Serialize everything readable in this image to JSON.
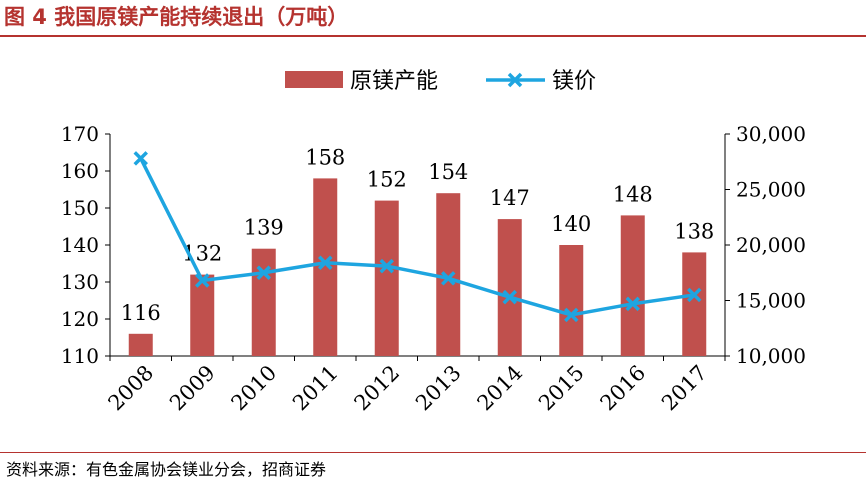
{
  "figure": {
    "title": "图 4  我国原镁产能持续退出（万吨）",
    "source": "资料来源：有色金属协会镁业分会，招商证券"
  },
  "colors": {
    "accent": "#b5332f",
    "bar": "#c0504d",
    "line": "#1ea5e0",
    "axis": "#000000"
  },
  "chart_data": {
    "type": "bar+line",
    "title": "我国原镁产能持续退出（万吨）",
    "categories": [
      "2008",
      "2009",
      "2010",
      "2011",
      "2012",
      "2013",
      "2014",
      "2015",
      "2016",
      "2017"
    ],
    "series": [
      {
        "name": "原镁产能",
        "type": "bar",
        "axis": "left",
        "values": [
          116,
          132,
          139,
          158,
          152,
          154,
          147,
          140,
          148,
          138
        ],
        "labels": [
          "116",
          "132",
          "139",
          "158",
          "152",
          "154",
          "147",
          "140",
          "148",
          "138"
        ]
      },
      {
        "name": "镁价",
        "type": "line",
        "marker": "x",
        "axis": "right",
        "values": [
          27800,
          16800,
          17500,
          18400,
          18100,
          17000,
          15300,
          13700,
          14700,
          15500
        ]
      }
    ],
    "y_left": {
      "min": 110,
      "max": 170,
      "ticks": [
        "110",
        "120",
        "130",
        "140",
        "150",
        "160",
        "170"
      ]
    },
    "y_right": {
      "min": 10000,
      "max": 30000,
      "ticks": [
        "10,000",
        "15,000",
        "20,000",
        "25,000",
        "30,000"
      ]
    },
    "legend": {
      "position": "top-center",
      "items": [
        "原镁产能",
        "镁价"
      ]
    }
  }
}
